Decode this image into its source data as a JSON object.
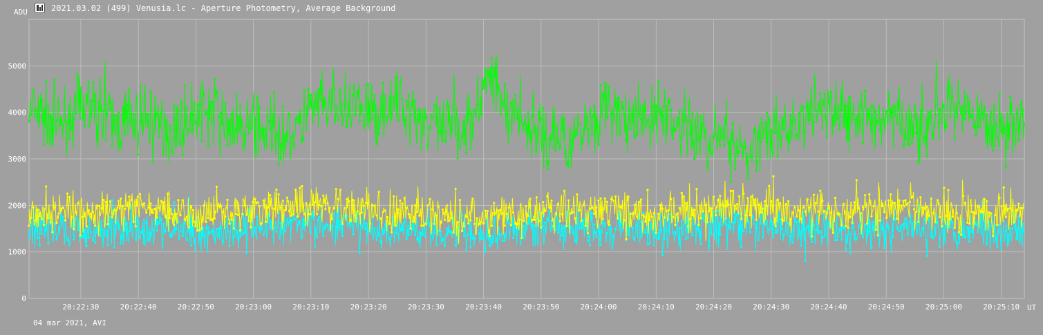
{
  "window": {
    "title": "2021.03.02 (499) Venusia.lc - Aperture Photometry, Average Background",
    "icon": "lightcurve-app-icon"
  },
  "footer": {
    "date_label": "04 mar 2021, AVI"
  },
  "colors": {
    "background": "#a0a0a0",
    "grid": "#c4c4c4",
    "text": "#ffffff",
    "series_green": "#00ff00",
    "series_cyan": "#00ffff",
    "series_yellow": "#ffff00"
  },
  "chart_data": {
    "type": "line",
    "title": "",
    "xlabel": "UT",
    "ylabel": "ADU",
    "ylim": [
      0,
      6000
    ],
    "xlim": [
      "20:22:21",
      "20:25:14"
    ],
    "grid": true,
    "legend": "none",
    "y_ticks": [
      0,
      1000,
      2000,
      3000,
      4000,
      5000
    ],
    "x_ticks": [
      "20:22:30",
      "20:22:40",
      "20:22:50",
      "20:23:00",
      "20:23:10",
      "20:23:20",
      "20:23:30",
      "20:23:40",
      "20:23:50",
      "20:24:00",
      "20:24:10",
      "20:24:20",
      "20:24:30",
      "20:24:40",
      "20:24:50",
      "20:25:00",
      "20:25:10"
    ],
    "series": [
      {
        "color": "#00ff00",
        "x": [
          "20:22:21",
          "20:22:26",
          "20:22:31",
          "20:22:36",
          "20:22:41",
          "20:22:46",
          "20:22:51",
          "20:22:56",
          "20:23:01",
          "20:23:06",
          "20:23:11",
          "20:23:16",
          "20:23:21",
          "20:23:26",
          "20:23:31",
          "20:23:36",
          "20:23:41",
          "20:23:46",
          "20:23:51",
          "20:23:56",
          "20:24:01",
          "20:24:06",
          "20:24:11",
          "20:24:16",
          "20:24:21",
          "20:24:26",
          "20:24:31",
          "20:24:36",
          "20:24:41",
          "20:24:46",
          "20:24:51",
          "20:24:56",
          "20:25:01",
          "20:25:06",
          "20:25:11",
          "20:25:14"
        ],
        "values": [
          4000,
          3800,
          4200,
          3700,
          3900,
          3600,
          4100,
          3700,
          3650,
          3500,
          4100,
          4050,
          4000,
          4200,
          3700,
          3600,
          4700,
          3900,
          3400,
          3500,
          4100,
          3750,
          3950,
          3600,
          3400,
          3300,
          3500,
          3900,
          4100,
          3800,
          3950,
          3600,
          4000,
          3800,
          3700,
          3900
        ]
      },
      {
        "color": "#00ffff",
        "x": [
          "20:22:21",
          "20:22:31",
          "20:22:41",
          "20:22:51",
          "20:23:01",
          "20:23:11",
          "20:23:21",
          "20:23:31",
          "20:23:41",
          "20:23:51",
          "20:24:01",
          "20:24:11",
          "20:24:21",
          "20:24:31",
          "20:24:41",
          "20:24:51",
          "20:25:01",
          "20:25:11",
          "20:25:14"
        ],
        "values": [
          1500,
          1450,
          1550,
          1400,
          1500,
          1600,
          1450,
          1500,
          1400,
          1550,
          1500,
          1450,
          1600,
          1500,
          1450,
          1500,
          1550,
          1450,
          1500
        ]
      },
      {
        "color": "#ffff00",
        "x": [
          "20:22:21",
          "20:22:31",
          "20:22:41",
          "20:22:51",
          "20:23:01",
          "20:23:11",
          "20:23:21",
          "20:23:31",
          "20:23:41",
          "20:23:51",
          "20:24:01",
          "20:24:11",
          "20:24:21",
          "20:24:31",
          "20:24:41",
          "20:24:51",
          "20:25:01",
          "20:25:11",
          "20:25:14"
        ],
        "values": [
          1900,
          1800,
          1950,
          1850,
          1900,
          2000,
          1850,
          1800,
          1750,
          1850,
          1900,
          1800,
          1950,
          1900,
          1850,
          1950,
          1900,
          1800,
          1750
        ]
      }
    ]
  }
}
